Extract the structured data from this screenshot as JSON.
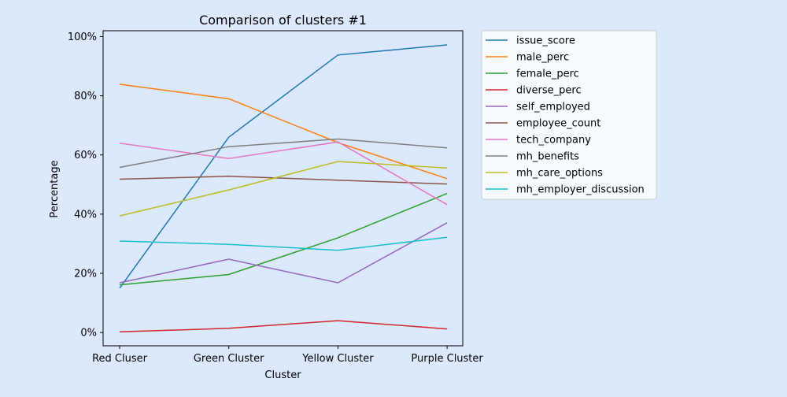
{
  "colors": {
    "background": "#dce8fb",
    "legend_background": "#f7faff",
    "series": [
      "#1f77b4",
      "#ff7f0e",
      "#2ca02c",
      "#d62728",
      "#9467bd",
      "#8c564b",
      "#e377c2",
      "#7f7f7f",
      "#bcbd22",
      "#17becf"
    ]
  },
  "chart_data": {
    "type": "line",
    "title": "Comparison of clusters #1",
    "xlabel": "Cluster",
    "ylabel": "Percentage",
    "categories": [
      "Red Cluser",
      "Green Cluster",
      "Yellow Cluster",
      "Purple Cluster"
    ],
    "ylim": [
      -4.5,
      102
    ],
    "yticks": [
      0,
      20,
      40,
      60,
      80,
      100
    ],
    "ytick_labels": [
      "0%",
      "20%",
      "40%",
      "60%",
      "80%",
      "100%"
    ],
    "grid": false,
    "legend_placement": "outside-right",
    "series": [
      {
        "name": "issue_score",
        "values": [
          15.0,
          66.0,
          93.8,
          97.2
        ]
      },
      {
        "name": "male_perc",
        "values": [
          83.9,
          79.0,
          64.2,
          52.0
        ]
      },
      {
        "name": "female_perc",
        "values": [
          16.1,
          19.6,
          32.0,
          47.0
        ]
      },
      {
        "name": "diverse_perc",
        "values": [
          0.2,
          1.4,
          4.0,
          1.2
        ]
      },
      {
        "name": "self_employed",
        "values": [
          16.8,
          24.8,
          16.8,
          37.1
        ]
      },
      {
        "name": "employee_count",
        "values": [
          51.8,
          52.8,
          51.5,
          50.2
        ]
      },
      {
        "name": "tech_company",
        "values": [
          64.0,
          58.8,
          64.4,
          43.2
        ]
      },
      {
        "name": "mh_benefits",
        "values": [
          55.8,
          62.8,
          65.4,
          62.4
        ]
      },
      {
        "name": "mh_care_options",
        "values": [
          39.4,
          48.2,
          57.8,
          55.6
        ]
      },
      {
        "name": "mh_employer_discussion",
        "values": [
          30.9,
          29.8,
          27.8,
          32.2
        ]
      }
    ]
  }
}
